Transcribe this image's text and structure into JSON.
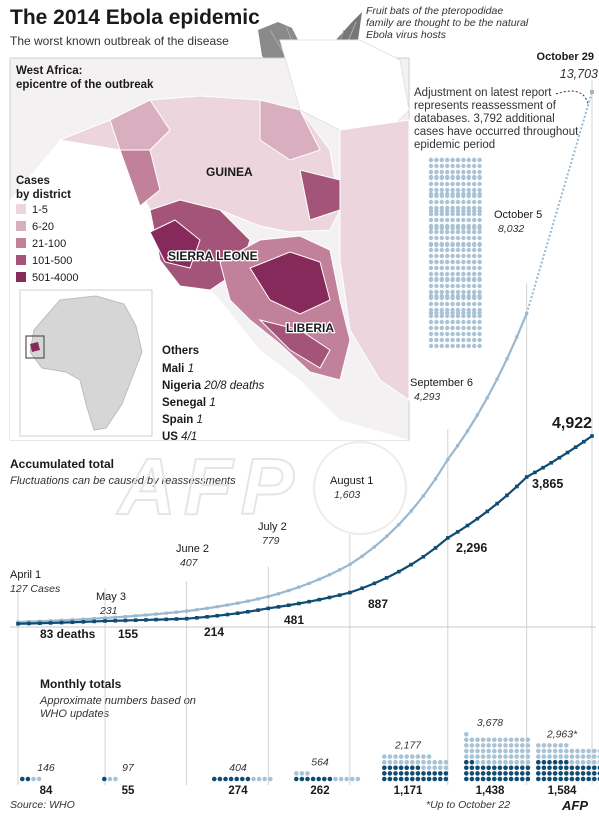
{
  "header": {
    "title": "The 2014 Ebola epidemic",
    "subtitle": "The worst known outbreak of the disease"
  },
  "bat_note": "Fruit bats of the pteropodidae family are thought to be the natural Ebola virus hosts",
  "map": {
    "region_title": "West Africa:",
    "region_subtitle": "epicentre of the outbreak",
    "countries": [
      "GUINEA",
      "SIERRA LEONE",
      "LIBERIA"
    ],
    "legend_title": "Cases",
    "legend_subtitle": "by district",
    "legend": [
      {
        "label": "1-5",
        "color": "#ecd5dd"
      },
      {
        "label": "6-20",
        "color": "#d9aebf"
      },
      {
        "label": "21-100",
        "color": "#c1819b"
      },
      {
        "label": "101-500",
        "color": "#a55479"
      },
      {
        "label": "501-4000",
        "color": "#862a5c"
      }
    ],
    "others_title": "Others",
    "others": [
      {
        "country": "Mali",
        "value": "1"
      },
      {
        "country": "Nigeria",
        "value": "20/8 deaths"
      },
      {
        "country": "Senegal",
        "value": "1"
      },
      {
        "country": "Spain",
        "value": "1"
      },
      {
        "country": "US",
        "value": "4/1"
      }
    ]
  },
  "adjustment_note": "Adjustment on latest report represents reassessment of databases. 3,792 additional cases have occurred throughout epidemic period",
  "accumulated": {
    "title": "Accumulated total",
    "note": "Fluctuations can be caused by reassessments"
  },
  "monthly": {
    "title": "Monthly totals",
    "note": "Approximate numbers based on WHO updates"
  },
  "source": "Source: WHO",
  "footnote": "*Up to October 22",
  "logo": "AFP",
  "colors": {
    "cases": "#9ab8cf",
    "deaths": "#0f4c73",
    "cases_dots": "#a9c3d6"
  },
  "chart_data": [
    {
      "type": "line",
      "title": "Accumulated total",
      "series": [
        {
          "name": "Cases",
          "points": [
            {
              "date": "2014-04-01",
              "value": 127
            },
            {
              "date": "2014-05-03",
              "value": 231
            },
            {
              "date": "2014-06-02",
              "value": 407
            },
            {
              "date": "2014-07-02",
              "value": 779
            },
            {
              "date": "2014-08-01",
              "value": 1603
            },
            {
              "date": "2014-09-06",
              "value": 4293
            },
            {
              "date": "2014-10-05",
              "value": 8032
            },
            {
              "date": "2014-10-29",
              "value": 13703
            }
          ]
        },
        {
          "name": "Deaths",
          "points": [
            {
              "date": "2014-04-01",
              "value": 83
            },
            {
              "date": "2014-05-03",
              "value": 155
            },
            {
              "date": "2014-06-02",
              "value": 214
            },
            {
              "date": "2014-07-02",
              "value": 481
            },
            {
              "date": "2014-08-01",
              "value": 887
            },
            {
              "date": "2014-09-06",
              "value": 2296
            },
            {
              "date": "2014-10-05",
              "value": 3865
            },
            {
              "date": "2014-10-29",
              "value": 4922
            }
          ]
        }
      ],
      "labels": [
        {
          "date": "April 1",
          "cases": "127 Cases",
          "deaths": "83 deaths"
        },
        {
          "date": "May 3",
          "cases": "231",
          "deaths": "155"
        },
        {
          "date": "June 2",
          "cases": "407",
          "deaths": "214"
        },
        {
          "date": "July 2",
          "cases": "779",
          "deaths": "481"
        },
        {
          "date": "August 1",
          "cases": "1,603",
          "deaths": "887"
        },
        {
          "date": "September 6",
          "cases": "4,293",
          "deaths": "2,296"
        },
        {
          "date": "October 5",
          "cases": "8,032",
          "deaths": "3,865"
        },
        {
          "date": "October 29",
          "cases": "13,703",
          "deaths": "4,922"
        }
      ]
    },
    {
      "type": "bar",
      "title": "Monthly totals",
      "categories": [
        "April",
        "May",
        "June",
        "July",
        "August",
        "September",
        "October"
      ],
      "series": [
        {
          "name": "Cases",
          "values": [
            146,
            97,
            404,
            564,
            2177,
            3678,
            2963
          ],
          "labels": [
            "146",
            "97",
            "404",
            "564",
            "2,177",
            "3,678",
            "2,963*"
          ]
        },
        {
          "name": "Deaths",
          "values": [
            84,
            55,
            274,
            262,
            1171,
            1438,
            1584
          ],
          "labels": [
            "84",
            "55",
            "274",
            "262",
            "1,171",
            "1,438",
            "1,584"
          ]
        }
      ]
    }
  ]
}
